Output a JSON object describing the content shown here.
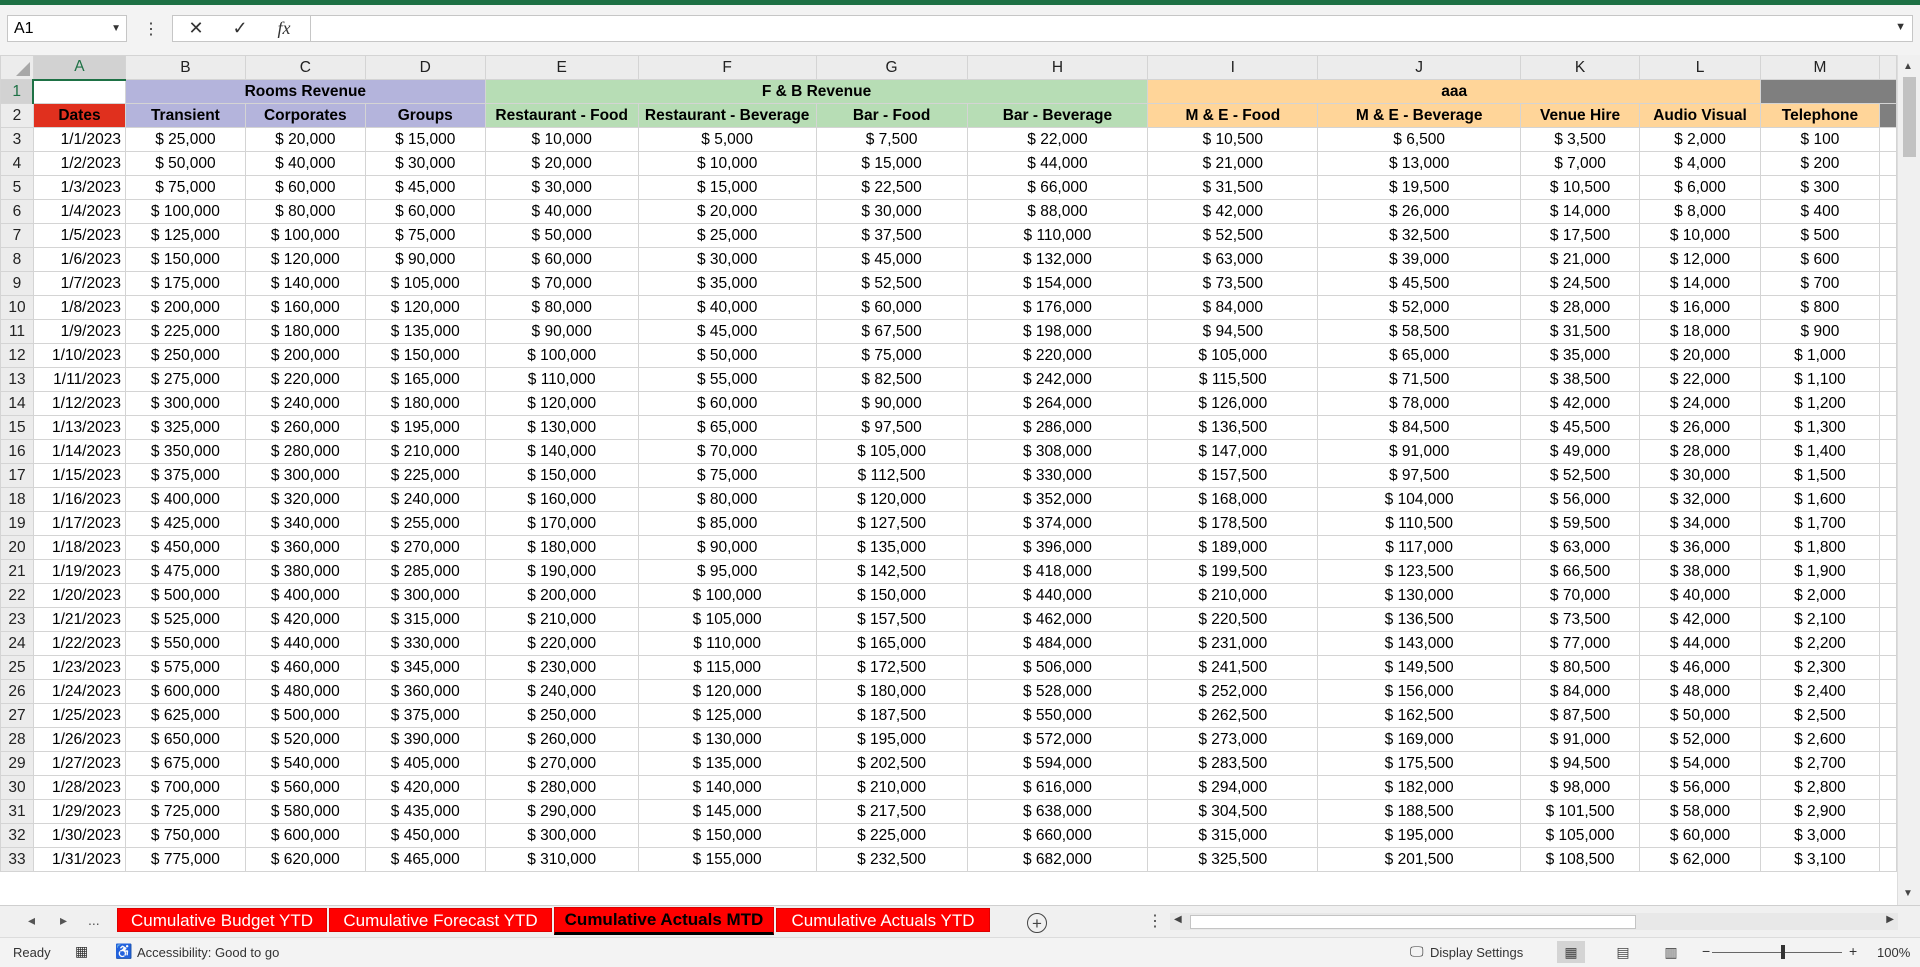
{
  "formula_bar": {
    "name_box": "A1",
    "cancel_icon": "✕",
    "enter_icon": "✓",
    "fx_label": "fx",
    "formula": ""
  },
  "colors": {
    "excel_green": "#1e7145",
    "rooms": "#b4b4dc",
    "fb": "#b7ddb5",
    "me": "#ffd599",
    "phone": "#7f7f7f",
    "dates_header": "#e0301e",
    "tab_red": "#ff0000"
  },
  "sheet": {
    "columns": [
      "A",
      "B",
      "C",
      "D",
      "E",
      "F",
      "G",
      "H",
      "I",
      "J",
      "K",
      "L",
      "M"
    ],
    "groups": {
      "rooms": "Rooms Revenue",
      "fb": "F & B Revenue",
      "me": "aaa",
      "phone": ""
    },
    "headers": [
      "Dates",
      "Transient",
      "Corporates",
      "Groups",
      "Restaurant - Food",
      "Restaurant - Beverage",
      "Bar - Food",
      "Bar - Beverage",
      "M & E - Food",
      "M & E - Beverage",
      "Venue Hire",
      "Audio Visual",
      "Telephone"
    ],
    "rows": [
      [
        "1/1/2023",
        "$ 25,000",
        "$ 20,000",
        "$ 15,000",
        "$ 10,000",
        "$ 5,000",
        "$ 7,500",
        "$ 22,000",
        "$ 10,500",
        "$ 6,500",
        "$ 3,500",
        "$ 2,000",
        "$ 100"
      ],
      [
        "1/2/2023",
        "$ 50,000",
        "$ 40,000",
        "$ 30,000",
        "$ 20,000",
        "$ 10,000",
        "$ 15,000",
        "$ 44,000",
        "$ 21,000",
        "$ 13,000",
        "$ 7,000",
        "$ 4,000",
        "$ 200"
      ],
      [
        "1/3/2023",
        "$ 75,000",
        "$ 60,000",
        "$ 45,000",
        "$ 30,000",
        "$ 15,000",
        "$ 22,500",
        "$ 66,000",
        "$ 31,500",
        "$ 19,500",
        "$ 10,500",
        "$ 6,000",
        "$ 300"
      ],
      [
        "1/4/2023",
        "$ 100,000",
        "$ 80,000",
        "$ 60,000",
        "$ 40,000",
        "$ 20,000",
        "$ 30,000",
        "$ 88,000",
        "$ 42,000",
        "$ 26,000",
        "$ 14,000",
        "$ 8,000",
        "$ 400"
      ],
      [
        "1/5/2023",
        "$ 125,000",
        "$ 100,000",
        "$ 75,000",
        "$ 50,000",
        "$ 25,000",
        "$ 37,500",
        "$ 110,000",
        "$ 52,500",
        "$ 32,500",
        "$ 17,500",
        "$ 10,000",
        "$ 500"
      ],
      [
        "1/6/2023",
        "$ 150,000",
        "$ 120,000",
        "$ 90,000",
        "$ 60,000",
        "$ 30,000",
        "$ 45,000",
        "$ 132,000",
        "$ 63,000",
        "$ 39,000",
        "$ 21,000",
        "$ 12,000",
        "$ 600"
      ],
      [
        "1/7/2023",
        "$ 175,000",
        "$ 140,000",
        "$ 105,000",
        "$ 70,000",
        "$ 35,000",
        "$ 52,500",
        "$ 154,000",
        "$ 73,500",
        "$ 45,500",
        "$ 24,500",
        "$ 14,000",
        "$ 700"
      ],
      [
        "1/8/2023",
        "$ 200,000",
        "$ 160,000",
        "$ 120,000",
        "$ 80,000",
        "$ 40,000",
        "$ 60,000",
        "$ 176,000",
        "$ 84,000",
        "$ 52,000",
        "$ 28,000",
        "$ 16,000",
        "$ 800"
      ],
      [
        "1/9/2023",
        "$ 225,000",
        "$ 180,000",
        "$ 135,000",
        "$ 90,000",
        "$ 45,000",
        "$ 67,500",
        "$ 198,000",
        "$ 94,500",
        "$ 58,500",
        "$ 31,500",
        "$ 18,000",
        "$ 900"
      ],
      [
        "1/10/2023",
        "$ 250,000",
        "$ 200,000",
        "$ 150,000",
        "$ 100,000",
        "$ 50,000",
        "$ 75,000",
        "$ 220,000",
        "$ 105,000",
        "$ 65,000",
        "$ 35,000",
        "$ 20,000",
        "$ 1,000"
      ],
      [
        "1/11/2023",
        "$ 275,000",
        "$ 220,000",
        "$ 165,000",
        "$ 110,000",
        "$ 55,000",
        "$ 82,500",
        "$ 242,000",
        "$ 115,500",
        "$ 71,500",
        "$ 38,500",
        "$ 22,000",
        "$ 1,100"
      ],
      [
        "1/12/2023",
        "$ 300,000",
        "$ 240,000",
        "$ 180,000",
        "$ 120,000",
        "$ 60,000",
        "$ 90,000",
        "$ 264,000",
        "$ 126,000",
        "$ 78,000",
        "$ 42,000",
        "$ 24,000",
        "$ 1,200"
      ],
      [
        "1/13/2023",
        "$ 325,000",
        "$ 260,000",
        "$ 195,000",
        "$ 130,000",
        "$ 65,000",
        "$ 97,500",
        "$ 286,000",
        "$ 136,500",
        "$ 84,500",
        "$ 45,500",
        "$ 26,000",
        "$ 1,300"
      ],
      [
        "1/14/2023",
        "$ 350,000",
        "$ 280,000",
        "$ 210,000",
        "$ 140,000",
        "$ 70,000",
        "$ 105,000",
        "$ 308,000",
        "$ 147,000",
        "$ 91,000",
        "$ 49,000",
        "$ 28,000",
        "$ 1,400"
      ],
      [
        "1/15/2023",
        "$ 375,000",
        "$ 300,000",
        "$ 225,000",
        "$ 150,000",
        "$ 75,000",
        "$ 112,500",
        "$ 330,000",
        "$ 157,500",
        "$ 97,500",
        "$ 52,500",
        "$ 30,000",
        "$ 1,500"
      ],
      [
        "1/16/2023",
        "$ 400,000",
        "$ 320,000",
        "$ 240,000",
        "$ 160,000",
        "$ 80,000",
        "$ 120,000",
        "$ 352,000",
        "$ 168,000",
        "$ 104,000",
        "$ 56,000",
        "$ 32,000",
        "$ 1,600"
      ],
      [
        "1/17/2023",
        "$ 425,000",
        "$ 340,000",
        "$ 255,000",
        "$ 170,000",
        "$ 85,000",
        "$ 127,500",
        "$ 374,000",
        "$ 178,500",
        "$ 110,500",
        "$ 59,500",
        "$ 34,000",
        "$ 1,700"
      ],
      [
        "1/18/2023",
        "$ 450,000",
        "$ 360,000",
        "$ 270,000",
        "$ 180,000",
        "$ 90,000",
        "$ 135,000",
        "$ 396,000",
        "$ 189,000",
        "$ 117,000",
        "$ 63,000",
        "$ 36,000",
        "$ 1,800"
      ],
      [
        "1/19/2023",
        "$ 475,000",
        "$ 380,000",
        "$ 285,000",
        "$ 190,000",
        "$ 95,000",
        "$ 142,500",
        "$ 418,000",
        "$ 199,500",
        "$ 123,500",
        "$ 66,500",
        "$ 38,000",
        "$ 1,900"
      ],
      [
        "1/20/2023",
        "$ 500,000",
        "$ 400,000",
        "$ 300,000",
        "$ 200,000",
        "$ 100,000",
        "$ 150,000",
        "$ 440,000",
        "$ 210,000",
        "$ 130,000",
        "$ 70,000",
        "$ 40,000",
        "$ 2,000"
      ],
      [
        "1/21/2023",
        "$ 525,000",
        "$ 420,000",
        "$ 315,000",
        "$ 210,000",
        "$ 105,000",
        "$ 157,500",
        "$ 462,000",
        "$ 220,500",
        "$ 136,500",
        "$ 73,500",
        "$ 42,000",
        "$ 2,100"
      ],
      [
        "1/22/2023",
        "$ 550,000",
        "$ 440,000",
        "$ 330,000",
        "$ 220,000",
        "$ 110,000",
        "$ 165,000",
        "$ 484,000",
        "$ 231,000",
        "$ 143,000",
        "$ 77,000",
        "$ 44,000",
        "$ 2,200"
      ],
      [
        "1/23/2023",
        "$ 575,000",
        "$ 460,000",
        "$ 345,000",
        "$ 230,000",
        "$ 115,000",
        "$ 172,500",
        "$ 506,000",
        "$ 241,500",
        "$ 149,500",
        "$ 80,500",
        "$ 46,000",
        "$ 2,300"
      ],
      [
        "1/24/2023",
        "$ 600,000",
        "$ 480,000",
        "$ 360,000",
        "$ 240,000",
        "$ 120,000",
        "$ 180,000",
        "$ 528,000",
        "$ 252,000",
        "$ 156,000",
        "$ 84,000",
        "$ 48,000",
        "$ 2,400"
      ],
      [
        "1/25/2023",
        "$ 625,000",
        "$ 500,000",
        "$ 375,000",
        "$ 250,000",
        "$ 125,000",
        "$ 187,500",
        "$ 550,000",
        "$ 262,500",
        "$ 162,500",
        "$ 87,500",
        "$ 50,000",
        "$ 2,500"
      ],
      [
        "1/26/2023",
        "$ 650,000",
        "$ 520,000",
        "$ 390,000",
        "$ 260,000",
        "$ 130,000",
        "$ 195,000",
        "$ 572,000",
        "$ 273,000",
        "$ 169,000",
        "$ 91,000",
        "$ 52,000",
        "$ 2,600"
      ],
      [
        "1/27/2023",
        "$ 675,000",
        "$ 540,000",
        "$ 405,000",
        "$ 270,000",
        "$ 135,000",
        "$ 202,500",
        "$ 594,000",
        "$ 283,500",
        "$ 175,500",
        "$ 94,500",
        "$ 54,000",
        "$ 2,700"
      ],
      [
        "1/28/2023",
        "$ 700,000",
        "$ 560,000",
        "$ 420,000",
        "$ 280,000",
        "$ 140,000",
        "$ 210,000",
        "$ 616,000",
        "$ 294,000",
        "$ 182,000",
        "$ 98,000",
        "$ 56,000",
        "$ 2,800"
      ],
      [
        "1/29/2023",
        "$ 725,000",
        "$ 580,000",
        "$ 435,000",
        "$ 290,000",
        "$ 145,000",
        "$ 217,500",
        "$ 638,000",
        "$ 304,500",
        "$ 188,500",
        "$ 101,500",
        "$ 58,000",
        "$ 2,900"
      ],
      [
        "1/30/2023",
        "$ 750,000",
        "$ 600,000",
        "$ 450,000",
        "$ 300,000",
        "$ 150,000",
        "$ 225,000",
        "$ 660,000",
        "$ 315,000",
        "$ 195,000",
        "$ 105,000",
        "$ 60,000",
        "$ 3,000"
      ],
      [
        "1/31/2023",
        "$ 775,000",
        "$ 620,000",
        "$ 465,000",
        "$ 310,000",
        "$ 155,000",
        "$ 232,500",
        "$ 682,000",
        "$ 325,500",
        "$ 201,500",
        "$ 108,500",
        "$ 62,000",
        "$ 3,100"
      ]
    ]
  },
  "tabs": {
    "nav_prev": "◂",
    "nav_next": "▸",
    "nav_more": "...",
    "add": "+",
    "more": "⋮",
    "items": [
      {
        "label": "Cumulative Budget YTD",
        "active": false
      },
      {
        "label": "Cumulative Forecast YTD",
        "active": false
      },
      {
        "label": "Cumulative Actuals MTD",
        "active": true
      },
      {
        "label": "Cumulative Actuals YTD",
        "active": false
      }
    ]
  },
  "status": {
    "ready": "Ready",
    "accessibility": "Accessibility: Good to go",
    "display_settings": "Display Settings",
    "zoom": "100%",
    "zoom_minus": "−",
    "zoom_plus": "+"
  }
}
